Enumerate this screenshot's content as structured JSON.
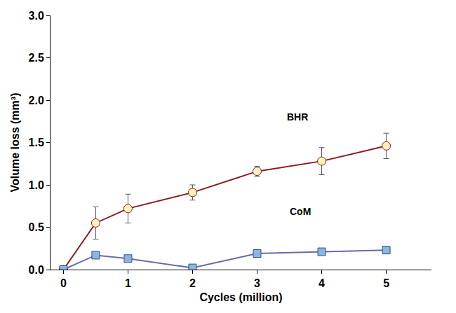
{
  "chart_data": {
    "type": "line",
    "x_label": "Cycles (million)",
    "y_label": "Volume loss (mm³)",
    "xlim": [
      -0.2,
      5.7
    ],
    "xticks": [
      0,
      1,
      2,
      3,
      4,
      5
    ],
    "ylim": [
      0,
      3
    ],
    "yticks": [
      {
        "value": 0,
        "label": "0.0"
      },
      0.5,
      {
        "value": 1,
        "label": "1.0"
      },
      1.5,
      {
        "value": 2,
        "label": "2.0"
      },
      2.5,
      {
        "value": 3,
        "label": "3.0"
      }
    ],
    "grid": false,
    "series": [
      {
        "name": "BHR",
        "color": "#8b1a1a",
        "marker": "circle",
        "x": [
          0,
          0.5,
          1,
          2,
          3,
          4,
          5
        ],
        "values": [
          0,
          0.55,
          0.72,
          0.91,
          1.16,
          1.28,
          1.46
        ],
        "errors": [
          0,
          0.19,
          0.17,
          0.09,
          0.06,
          0.16,
          0.15
        ]
      },
      {
        "name": "CoM",
        "color": "#6b6ba8",
        "marker": "square",
        "x": [
          0,
          0.5,
          1,
          2,
          3,
          4,
          5
        ],
        "values": [
          0,
          0.17,
          0.13,
          0.02,
          0.19,
          0.21,
          0.23
        ]
      }
    ]
  }
}
